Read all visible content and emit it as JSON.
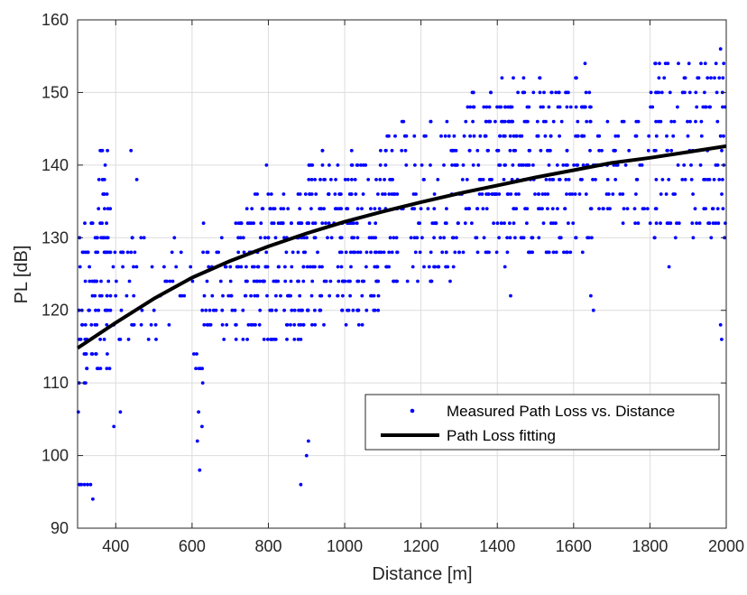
{
  "chart_data": {
    "type": "scatter",
    "xlabel": "Distance [m]",
    "ylabel": "PL [dB]",
    "xlim": [
      300,
      2000
    ],
    "ylim": [
      90,
      160
    ],
    "xticks": [
      400,
      600,
      800,
      1000,
      1200,
      1400,
      1600,
      1800,
      2000
    ],
    "yticks": [
      90,
      100,
      110,
      120,
      130,
      140,
      150,
      160
    ],
    "grid": true,
    "legend_position": "lower-right",
    "series": [
      {
        "name": "Measured Path Loss vs. Distance",
        "kind": "scatter",
        "color": "#0000ff",
        "clusters": [
          {
            "x": [
              300,
              330
            ],
            "y": [
              108,
              132
            ],
            "n": 28
          },
          {
            "x": [
              330,
              400
            ],
            "y": [
              112,
              134
            ],
            "n": 70
          },
          {
            "x": [
              355,
              380
            ],
            "y": [
              134,
              142
            ],
            "n": 14
          },
          {
            "x": [
              400,
              460
            ],
            "y": [
              114,
              130
            ],
            "n": 22
          },
          {
            "x": [
              460,
              600
            ],
            "y": [
              116,
              130
            ],
            "n": 25
          },
          {
            "x": [
              600,
              640
            ],
            "y": [
              110,
              132
            ],
            "n": 12
          },
          {
            "x": [
              640,
              700
            ],
            "y": [
              116,
              130
            ],
            "n": 22
          },
          {
            "x": [
              700,
              900
            ],
            "y": [
              116,
              136
            ],
            "n": 170
          },
          {
            "x": [
              900,
              1100
            ],
            "y": [
              118,
              142
            ],
            "n": 190
          },
          {
            "x": [
              1100,
              1300
            ],
            "y": [
              124,
              146
            ],
            "n": 130
          },
          {
            "x": [
              1300,
              1400
            ],
            "y": [
              128,
              152
            ],
            "n": 80
          },
          {
            "x": [
              1400,
              1650
            ],
            "y": [
              128,
              152
            ],
            "n": 230
          },
          {
            "x": [
              1650,
              1800
            ],
            "y": [
              132,
              146
            ],
            "n": 60
          },
          {
            "x": [
              1800,
              2000
            ],
            "y": [
              130,
              154
            ],
            "n": 130
          }
        ],
        "outliers": [
          {
            "x": 305,
            "y": 96
          },
          {
            "x": 310,
            "y": 96
          },
          {
            "x": 318,
            "y": 96
          },
          {
            "x": 326,
            "y": 96
          },
          {
            "x": 334,
            "y": 96
          },
          {
            "x": 340,
            "y": 94
          },
          {
            "x": 302,
            "y": 106
          },
          {
            "x": 304,
            "y": 110
          },
          {
            "x": 395,
            "y": 104
          },
          {
            "x": 412,
            "y": 106
          },
          {
            "x": 440,
            "y": 142
          },
          {
            "x": 455,
            "y": 138
          },
          {
            "x": 610,
            "y": 112
          },
          {
            "x": 612,
            "y": 114
          },
          {
            "x": 614,
            "y": 102
          },
          {
            "x": 617,
            "y": 106
          },
          {
            "x": 620,
            "y": 98
          },
          {
            "x": 622,
            "y": 112
          },
          {
            "x": 626,
            "y": 104
          },
          {
            "x": 628,
            "y": 110
          },
          {
            "x": 630,
            "y": 132
          },
          {
            "x": 795,
            "y": 140
          },
          {
            "x": 885,
            "y": 96
          },
          {
            "x": 900,
            "y": 100
          },
          {
            "x": 905,
            "y": 102
          },
          {
            "x": 1435,
            "y": 122
          },
          {
            "x": 1420,
            "y": 126
          },
          {
            "x": 1645,
            "y": 122
          },
          {
            "x": 1652,
            "y": 120
          },
          {
            "x": 1630,
            "y": 154
          },
          {
            "x": 1850,
            "y": 126
          },
          {
            "x": 1815,
            "y": 154
          },
          {
            "x": 1985,
            "y": 156
          },
          {
            "x": 1988,
            "y": 116
          },
          {
            "x": 1985,
            "y": 118
          }
        ]
      },
      {
        "name": "Path Loss fitting",
        "kind": "line",
        "color": "#000000",
        "x": [
          300,
          400,
          500,
          600,
          700,
          800,
          900,
          1000,
          1100,
          1200,
          1300,
          1400,
          1500,
          1600,
          1700,
          1800,
          1900,
          2000
        ],
        "y": [
          114.8,
          118.3,
          121.6,
          124.5,
          126.8,
          128.8,
          130.6,
          132.2,
          133.6,
          134.9,
          136.1,
          137.2,
          138.3,
          139.3,
          140.3,
          141.0,
          141.8,
          142.6
        ]
      }
    ]
  }
}
